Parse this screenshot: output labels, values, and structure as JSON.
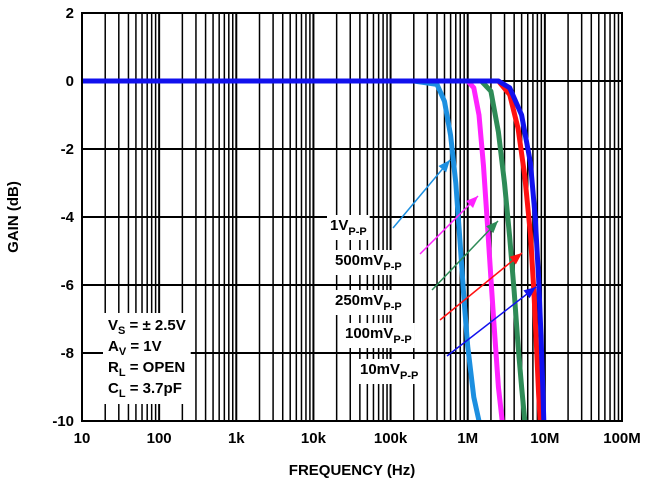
{
  "chart_data": {
    "type": "line",
    "title": "",
    "xlabel": "FREQUENCY (Hz)",
    "ylabel": "GAIN (dB)",
    "xscale": "log",
    "xlim": [
      10,
      100000000
    ],
    "ylim": [
      -10,
      2
    ],
    "grid": true,
    "x_tick_labels": [
      "10",
      "100",
      "1k",
      "10k",
      "100k",
      "1M",
      "10M",
      "100M"
    ],
    "y_ticks": [
      2,
      0,
      -2,
      -4,
      -6,
      -8,
      -10
    ],
    "series": [
      {
        "name": "1V",
        "name_sub": "P-P",
        "color": "#1c8fe0",
        "points": [
          [
            10,
            0
          ],
          [
            200000,
            0
          ],
          [
            400000,
            -0.1
          ],
          [
            500000,
            -0.6
          ],
          [
            600000,
            -1.6
          ],
          [
            700000,
            -3.0
          ],
          [
            800000,
            -4.8
          ],
          [
            900000,
            -6.5
          ],
          [
            1000000,
            -7.8
          ],
          [
            1200000,
            -9.3
          ],
          [
            1400000,
            -10
          ]
        ]
      },
      {
        "name": "500mV",
        "name_sub": "P-P",
        "color": "#ff22ff",
        "points": [
          [
            10,
            0
          ],
          [
            1000000,
            0
          ],
          [
            1200000,
            -0.2
          ],
          [
            1400000,
            -1.0
          ],
          [
            1600000,
            -2.5
          ],
          [
            1800000,
            -4.2
          ],
          [
            2000000,
            -5.8
          ],
          [
            2200000,
            -7.2
          ],
          [
            2500000,
            -9.0
          ],
          [
            2800000,
            -10
          ]
        ]
      },
      {
        "name": "250mV",
        "name_sub": "P-P",
        "color": "#2e8b57",
        "points": [
          [
            10,
            0
          ],
          [
            1500000,
            0
          ],
          [
            2000000,
            -0.3
          ],
          [
            2500000,
            -1.5
          ],
          [
            3000000,
            -3.0
          ],
          [
            3500000,
            -4.6
          ],
          [
            4000000,
            -6.2
          ],
          [
            4500000,
            -7.8
          ],
          [
            5000000,
            -9.0
          ],
          [
            5500000,
            -10
          ]
        ]
      },
      {
        "name": "100mV",
        "name_sub": "P-P",
        "color": "#ff1111",
        "points": [
          [
            10,
            0
          ],
          [
            2500000,
            0
          ],
          [
            3500000,
            -0.4
          ],
          [
            4500000,
            -1.4
          ],
          [
            5500000,
            -2.8
          ],
          [
            6500000,
            -4.5
          ],
          [
            7200000,
            -6.2
          ],
          [
            7800000,
            -7.8
          ],
          [
            8300000,
            -9.2
          ],
          [
            8700000,
            -10
          ]
        ]
      },
      {
        "name": "10mV",
        "name_sub": "P-P",
        "color": "#1111ee",
        "points": [
          [
            10,
            0
          ],
          [
            2500000,
            0
          ],
          [
            3500000,
            -0.2
          ],
          [
            5000000,
            -1.0
          ],
          [
            6500000,
            -2.4
          ],
          [
            7500000,
            -4.0
          ],
          [
            8300000,
            -5.8
          ],
          [
            8900000,
            -7.5
          ],
          [
            9400000,
            -9.0
          ],
          [
            9700000,
            -10
          ]
        ]
      }
    ],
    "annotation": {
      "lines": [
        {
          "main": "V",
          "sub": "S",
          "rest": " = ± 2.5V"
        },
        {
          "main": "A",
          "sub": "V",
          "rest": " = 1V"
        },
        {
          "main": "R",
          "sub": "L",
          "rest": " = OPEN"
        },
        {
          "main": "C",
          "sub": "L",
          "rest": " = 3.7pF"
        }
      ]
    }
  }
}
